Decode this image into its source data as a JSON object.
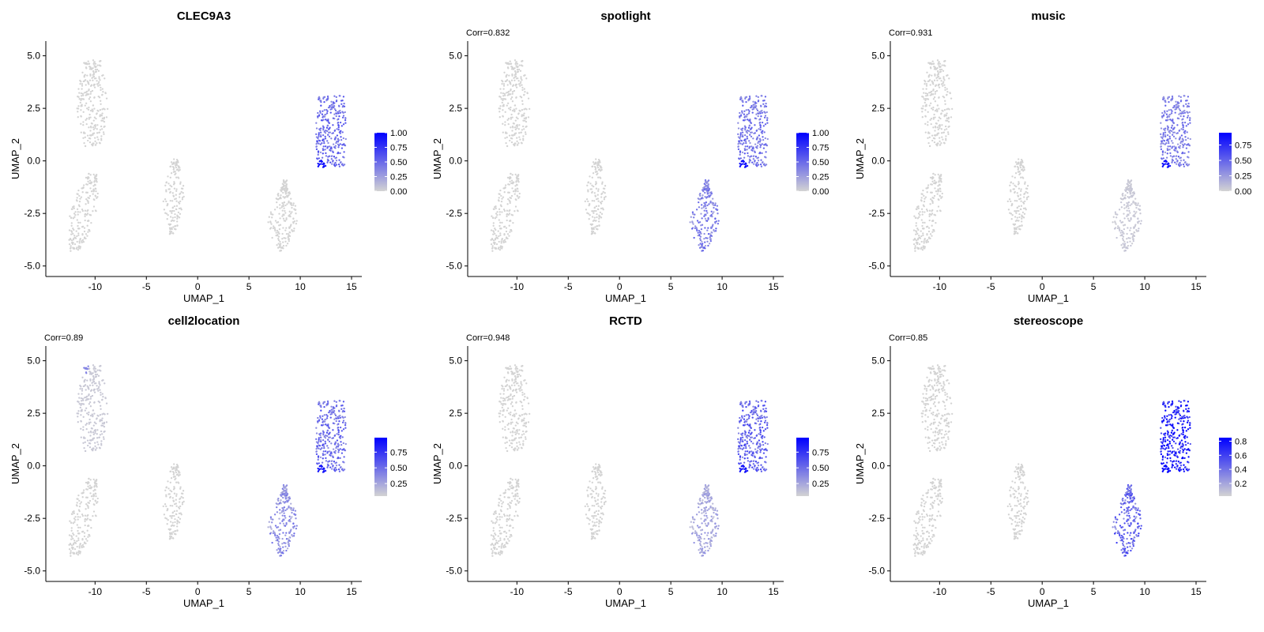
{
  "figure": {
    "palette": {
      "low": "#d3d3d3",
      "high": "#0000ff",
      "axis": "#000000",
      "text": "#000000"
    }
  },
  "chart_data": [
    {
      "type": "scatter",
      "title": "CLEC9A3",
      "subtitle": "",
      "xlabel": "UMAP_1",
      "ylabel": "UMAP_2",
      "xlim": [
        -14.8,
        16.0
      ],
      "ylim": [
        -5.5,
        5.7
      ],
      "xticks": [
        -10,
        -5,
        0,
        5,
        10,
        15
      ],
      "xtick_labels": [
        "-10",
        "-5",
        "0",
        "5",
        "10",
        "15"
      ],
      "yticks": [
        -5,
        -2.5,
        0,
        2.5,
        5
      ],
      "ytick_labels": [
        "-5.0",
        "-2.5",
        "0.0",
        "2.5",
        "5.0"
      ],
      "grid": false,
      "legend": {
        "position": "right",
        "type": "colorbar",
        "min": 0,
        "max": 1.0,
        "breaks": [
          0,
          0.25,
          0.5,
          0.75,
          1.0
        ],
        "labels": [
          "0.00",
          "0.25",
          "0.50",
          "0.75",
          "1.00"
        ]
      },
      "cluster_values": {
        "A": 0.0,
        "B": 0.0,
        "C": 0.0,
        "D": 0.0,
        "E": 0.5,
        "E_low": 0.95
      }
    },
    {
      "type": "scatter",
      "title": "spotlight",
      "subtitle": "Corr=0.832",
      "xlabel": "UMAP_1",
      "ylabel": "UMAP_2",
      "xlim": [
        -14.8,
        16.0
      ],
      "ylim": [
        -5.5,
        5.7
      ],
      "xticks": [
        -10,
        -5,
        0,
        5,
        10,
        15
      ],
      "xtick_labels": [
        "-10",
        "-5",
        "0",
        "5",
        "10",
        "15"
      ],
      "yticks": [
        -5,
        -2.5,
        0,
        2.5,
        5
      ],
      "ytick_labels": [
        "-5.0",
        "-2.5",
        "0.0",
        "2.5",
        "5.0"
      ],
      "grid": false,
      "legend": {
        "position": "right",
        "type": "colorbar",
        "min": 0,
        "max": 1.0,
        "breaks": [
          0,
          0.25,
          0.5,
          0.75,
          1.0
        ],
        "labels": [
          "0.00",
          "0.25",
          "0.50",
          "0.75",
          "1.00"
        ]
      },
      "cluster_values": {
        "A": 0.0,
        "B": 0.0,
        "C": 0.0,
        "D": 0.4,
        "E": 0.45,
        "E_low": 0.95
      }
    },
    {
      "type": "scatter",
      "title": "music",
      "subtitle": "Corr=0.931",
      "xlabel": "UMAP_1",
      "ylabel": "UMAP_2",
      "xlim": [
        -14.8,
        16.0
      ],
      "ylim": [
        -5.5,
        5.7
      ],
      "xticks": [
        -10,
        -5,
        0,
        5,
        10,
        15
      ],
      "xtick_labels": [
        "-10",
        "-5",
        "0",
        "5",
        "10",
        "15"
      ],
      "yticks": [
        -5,
        -2.5,
        0,
        2.5,
        5
      ],
      "ytick_labels": [
        "-5.0",
        "-2.5",
        "0.0",
        "2.5",
        "5.0"
      ],
      "grid": false,
      "legend": {
        "position": "right",
        "type": "colorbar",
        "min": 0,
        "max": 0.95,
        "breaks": [
          0,
          0.25,
          0.5,
          0.75
        ],
        "labels": [
          "0.00",
          "0.25",
          "0.50",
          "0.75"
        ]
      },
      "cluster_values": {
        "A": 0.0,
        "B": 0.0,
        "C": 0.0,
        "D": 0.05,
        "E": 0.4,
        "E_low": 0.9
      }
    },
    {
      "type": "scatter",
      "title": "cell2location",
      "subtitle": "Corr=0.89",
      "xlabel": "UMAP_1",
      "ylabel": "UMAP_2",
      "xlim": [
        -14.8,
        16.0
      ],
      "ylim": [
        -5.5,
        5.7
      ],
      "xticks": [
        -10,
        -5,
        0,
        5,
        10,
        15
      ],
      "xtick_labels": [
        "-10",
        "-5",
        "0",
        "5",
        "10",
        "15"
      ],
      "yticks": [
        -5,
        -2.5,
        0,
        2.5,
        5
      ],
      "ytick_labels": [
        "-5.0",
        "-2.5",
        "0.0",
        "2.5",
        "5.0"
      ],
      "grid": false,
      "legend": {
        "position": "right",
        "type": "colorbar",
        "min": 0.05,
        "max": 0.98,
        "breaks": [
          0.25,
          0.5,
          0.75
        ],
        "labels": [
          "0.25",
          "0.50",
          "0.75"
        ]
      },
      "cluster_values": {
        "A": 0.1,
        "B": 0.05,
        "C": 0.05,
        "D": 0.35,
        "E": 0.5,
        "E_low": 0.9
      }
    },
    {
      "type": "scatter",
      "title": "RCTD",
      "subtitle": "Corr=0.948",
      "xlabel": "UMAP_1",
      "ylabel": "UMAP_2",
      "xlim": [
        -14.8,
        16.0
      ],
      "ylim": [
        -5.5,
        5.7
      ],
      "xticks": [
        -10,
        -5,
        0,
        5,
        10,
        15
      ],
      "xtick_labels": [
        "-10",
        "-5",
        "0",
        "5",
        "10",
        "15"
      ],
      "yticks": [
        -5,
        -2.5,
        0,
        2.5,
        5
      ],
      "ytick_labels": [
        "-5.0",
        "-2.5",
        "0.0",
        "2.5",
        "5.0"
      ],
      "grid": false,
      "legend": {
        "position": "right",
        "type": "colorbar",
        "min": 0.05,
        "max": 0.98,
        "breaks": [
          0.25,
          0.5,
          0.75
        ],
        "labels": [
          "0.25",
          "0.50",
          "0.75"
        ]
      },
      "cluster_values": {
        "A": 0.05,
        "B": 0.05,
        "C": 0.05,
        "D": 0.25,
        "E": 0.55,
        "E_low": 0.9
      }
    },
    {
      "type": "scatter",
      "title": "stereoscope",
      "subtitle": "Corr=0.85",
      "xlabel": "UMAP_1",
      "ylabel": "UMAP_2",
      "xlim": [
        -14.8,
        16.0
      ],
      "ylim": [
        -5.5,
        5.7
      ],
      "xticks": [
        -10,
        -5,
        0,
        5,
        10,
        15
      ],
      "xtick_labels": [
        "-10",
        "-5",
        "0",
        "5",
        "10",
        "15"
      ],
      "yticks": [
        -5,
        -2.5,
        0,
        2.5,
        5
      ],
      "ytick_labels": [
        "-5.0",
        "-2.5",
        "0.0",
        "2.5",
        "5.0"
      ],
      "grid": false,
      "legend": {
        "position": "right",
        "type": "colorbar",
        "min": 0.02,
        "max": 0.85,
        "breaks": [
          0.2,
          0.4,
          0.6,
          0.8
        ],
        "labels": [
          "0.2",
          "0.4",
          "0.6",
          "0.8"
        ]
      },
      "cluster_values": {
        "A": 0.02,
        "B": 0.02,
        "C": 0.02,
        "D": 0.45,
        "E": 0.75,
        "E_low": 0.85
      }
    }
  ]
}
